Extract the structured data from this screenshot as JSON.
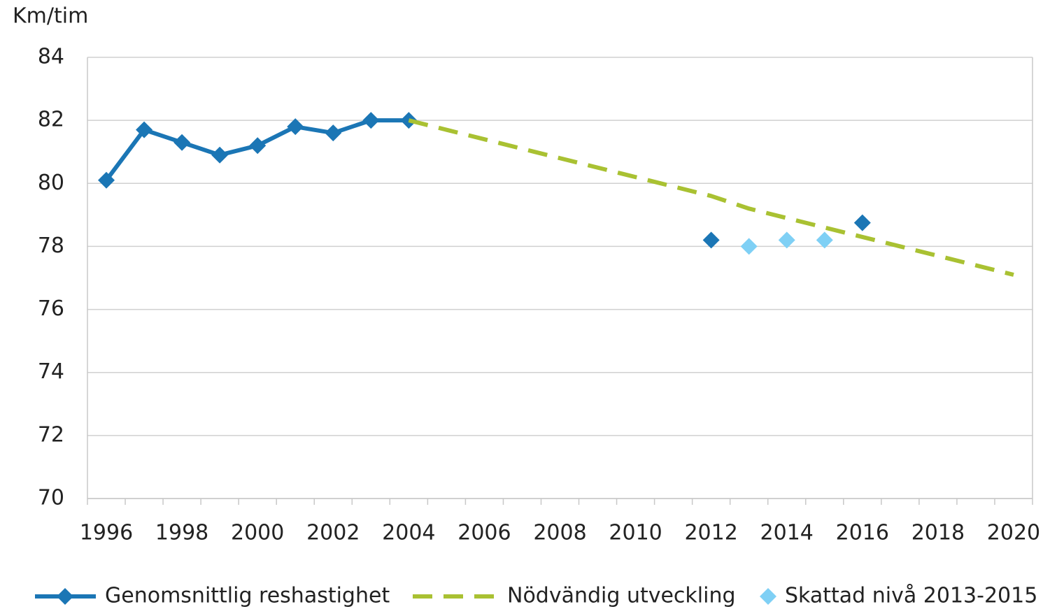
{
  "chart_data": {
    "type": "line",
    "y_label": "Km/tim",
    "categories": [
      1996,
      null,
      1998,
      null,
      2000,
      null,
      2002,
      null,
      2004,
      null,
      2006,
      null,
      2008,
      null,
      2010,
      null,
      2012,
      null,
      2014,
      null,
      2016,
      null,
      2018,
      null,
      2020
    ],
    "ylim": [
      70,
      84
    ],
    "yticks": [
      70,
      72,
      74,
      76,
      78,
      80,
      82,
      84
    ],
    "grid": true,
    "legend": "bottom",
    "series": [
      {
        "name": "Genomsnittlig reshastighet",
        "color": "#1b76b5",
        "style": "line-markers",
        "values": [
          80.1,
          81.7,
          81.3,
          80.9,
          81.2,
          81.8,
          81.6,
          82.0,
          82.0,
          null,
          null,
          null,
          null,
          null,
          null,
          null,
          78.2,
          null,
          null,
          null,
          78.75,
          null,
          null,
          null,
          null
        ]
      },
      {
        "name": "Nödvändig utveckling",
        "color": "#a9c132",
        "style": "dashed",
        "values": [
          null,
          null,
          null,
          null,
          null,
          null,
          null,
          null,
          82.0,
          81.7,
          81.4,
          81.1,
          80.8,
          80.5,
          80.2,
          79.9,
          79.6,
          79.2,
          78.9,
          78.6,
          78.3,
          78.0,
          77.7,
          77.4,
          77.1
        ]
      },
      {
        "name": "Skattad nivå 2013-2015",
        "color": "#7fd0f5",
        "style": "markers",
        "values": [
          null,
          null,
          null,
          null,
          null,
          null,
          null,
          null,
          null,
          null,
          null,
          null,
          null,
          null,
          null,
          null,
          null,
          78.0,
          78.2,
          78.2,
          null,
          null,
          null,
          null,
          null
        ]
      }
    ]
  }
}
